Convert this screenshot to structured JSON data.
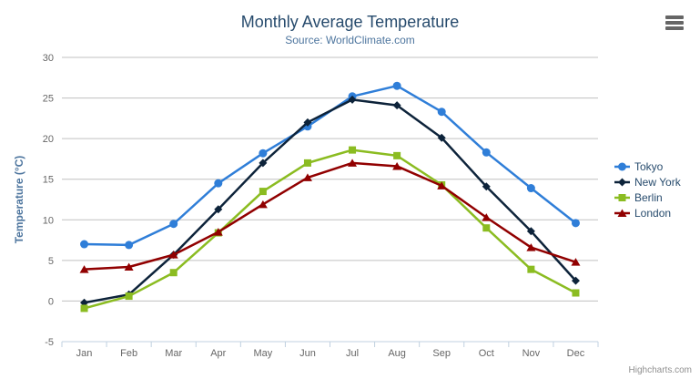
{
  "header": {
    "title": "Monthly Average Temperature",
    "subtitle": "Source: WorldClimate.com"
  },
  "icons": {
    "export_menu": "hamburger-menu-icon"
  },
  "credits": {
    "label": "Highcharts.com"
  },
  "theme": {
    "background": "#ffffff",
    "title_color": "#274b6d",
    "subtitle_color": "#4d759e",
    "axis_title_color": "#4d759e",
    "axis_label_color": "#666666",
    "legend_text_color": "#274b6d",
    "grid_color": "#c0c0c0",
    "axis_line_color": "#c0d0e0",
    "credits_color": "#909090"
  },
  "chart_data": {
    "type": "line",
    "title": "Monthly Average Temperature",
    "subtitle": "Source: WorldClimate.com",
    "xlabel": "",
    "ylabel": "Temperature (°C)",
    "categories": [
      "Jan",
      "Feb",
      "Mar",
      "Apr",
      "May",
      "Jun",
      "Jul",
      "Aug",
      "Sep",
      "Oct",
      "Nov",
      "Dec"
    ],
    "ylim": [
      -5,
      30
    ],
    "yticks": [
      -5,
      0,
      5,
      10,
      15,
      20,
      25,
      30
    ],
    "grid": true,
    "legend_position": "right",
    "series": [
      {
        "name": "Tokyo",
        "color": "#2f7ed8",
        "marker": "circle",
        "values": [
          7.0,
          6.9,
          9.5,
          14.5,
          18.2,
          21.5,
          25.2,
          26.5,
          23.3,
          18.3,
          13.9,
          9.6
        ]
      },
      {
        "name": "New York",
        "color": "#0d233a",
        "marker": "diamond",
        "values": [
          -0.2,
          0.8,
          5.7,
          11.3,
          17.0,
          22.0,
          24.8,
          24.1,
          20.1,
          14.1,
          8.6,
          2.5
        ]
      },
      {
        "name": "Berlin",
        "color": "#8bbc21",
        "marker": "square",
        "values": [
          -0.9,
          0.6,
          3.5,
          8.4,
          13.5,
          17.0,
          18.6,
          17.9,
          14.3,
          9.0,
          3.9,
          1.0
        ]
      },
      {
        "name": "London",
        "color": "#910000",
        "marker": "triangle",
        "values": [
          3.9,
          4.2,
          5.7,
          8.5,
          11.9,
          15.2,
          17.0,
          16.6,
          14.2,
          10.3,
          6.6,
          4.8
        ]
      }
    ]
  }
}
